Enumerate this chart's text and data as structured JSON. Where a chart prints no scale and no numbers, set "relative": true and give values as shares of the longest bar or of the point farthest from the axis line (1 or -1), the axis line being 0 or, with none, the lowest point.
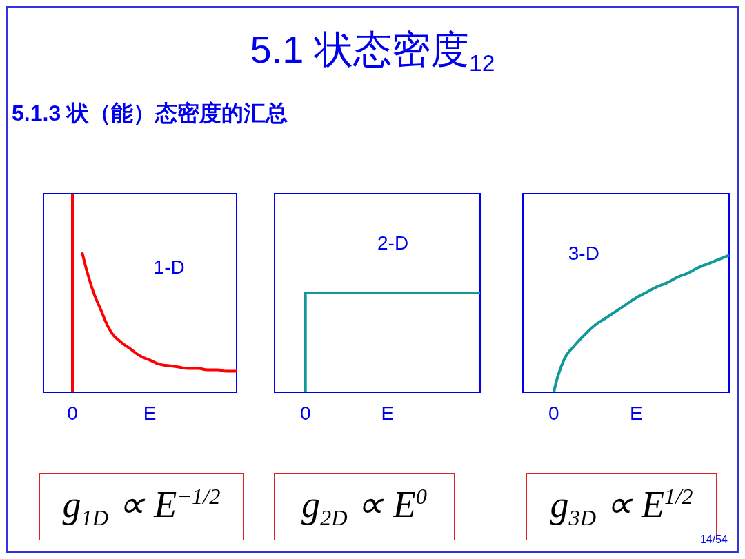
{
  "chart_data": [
    {
      "type": "line",
      "title": "5.1 状态密度$_{12}$",
      "subtitle": "5.1.3 状（能）态密度的汇总",
      "relative": true,
      "marker": "none",
      "tick_labels": "x",
      "categories": [
        null,
        null,
        null,
        "0",
        null,
        null,
        null,
        null,
        null,
        null,
        null,
        "E",
        null,
        null,
        null,
        null,
        null,
        null,
        null,
        null,
        null
      ],
      "series": [
        {
          "color": "#ff0000",
          "values": [
            null,
            null,
            null,
            null,
            1,
            0.75,
            0.58,
            0.43,
            0.36,
            0.31,
            0.26,
            0.23,
            0.2,
            0.19,
            0.18,
            0.17,
            0.17,
            0.16,
            0.16,
            0.15,
            0.15
          ]
        }
      ],
      "ref_lines": [
        {
          "axis": "x",
          "value": "0",
          "color": "#ff0000"
        }
      ],
      "annotations": [
        "1-D",
        "g$_{1D}$ ∝ E$^{−1/2}$"
      ]
    },
    {
      "type": "step",
      "relative": true,
      "marker": "none",
      "tick_labels": "x",
      "categories": [
        null,
        null,
        null,
        "0",
        null,
        null,
        null,
        null,
        null,
        null,
        null,
        "E",
        null,
        null,
        null,
        null,
        null,
        null,
        null,
        null,
        null
      ],
      "series": [
        {
          "color": "#119999",
          "values": [
            null,
            null,
            null,
            0,
            1,
            1,
            1,
            1,
            1,
            1,
            1,
            1,
            1,
            1,
            1,
            1,
            1,
            1,
            1,
            1,
            1
          ]
        }
      ],
      "annotations": [
        "2-D",
        "g$_{2D}$ ∝ E$^{0}$"
      ]
    },
    {
      "type": "line",
      "relative": true,
      "marker": "none",
      "tick_labels": "x",
      "categories": [
        null,
        null,
        null,
        "0",
        null,
        null,
        null,
        null,
        null,
        null,
        null,
        "E",
        null,
        null,
        null,
        null,
        null,
        null,
        null,
        null,
        null
      ],
      "series": [
        {
          "color": "#119999",
          "values": [
            null,
            null,
            null,
            0,
            0.24,
            0.34,
            0.42,
            0.49,
            0.54,
            0.59,
            0.64,
            0.69,
            0.73,
            0.77,
            0.8,
            0.84,
            0.87,
            0.91,
            0.94,
            0.97,
            1
          ]
        }
      ],
      "annotations": [
        "3-D",
        "g$_{3D}$ ∝ E$^{1/2}$",
        "14/54"
      ]
    }
  ]
}
